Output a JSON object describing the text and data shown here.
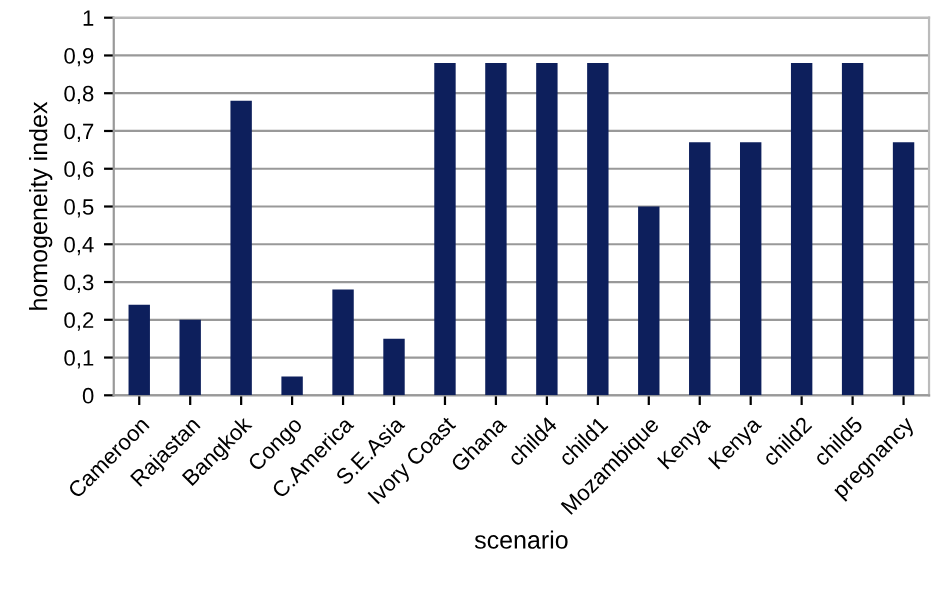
{
  "chart_data": {
    "type": "bar",
    "xlabel": "scenario",
    "ylabel": "homogeneity index",
    "categories": [
      "Cameroon",
      "Rajastan",
      "Bangkok",
      "Congo",
      "C.America",
      "S.E.Asia",
      "Ivory Coast",
      "Ghana",
      "child4",
      "child1",
      "Mozambique",
      "Kenya",
      "Kenya",
      "child2",
      "child5",
      "pregnancy"
    ],
    "values": [
      0.24,
      0.2,
      0.78,
      0.05,
      0.28,
      0.15,
      0.88,
      0.88,
      0.88,
      0.88,
      0.5,
      0.67,
      0.67,
      0.88,
      0.88,
      0.67
    ],
    "color": "#0d1f5c",
    "ylim": [
      0,
      1
    ],
    "yticks": [
      0,
      {
        "value": 0.1,
        "label": "0,1"
      },
      {
        "value": 0.2,
        "label": "0,2"
      },
      {
        "value": 0.3,
        "label": "0,3"
      },
      {
        "value": 0.4,
        "label": "0,4"
      },
      {
        "value": 0.5,
        "label": "0,5"
      },
      {
        "value": 0.6,
        "label": "0,6"
      },
      {
        "value": 0.7,
        "label": "0,7"
      },
      {
        "value": 0.8,
        "label": "0,8"
      },
      {
        "value": 0.9,
        "label": "0,9"
      },
      1
    ],
    "grid": "y"
  }
}
